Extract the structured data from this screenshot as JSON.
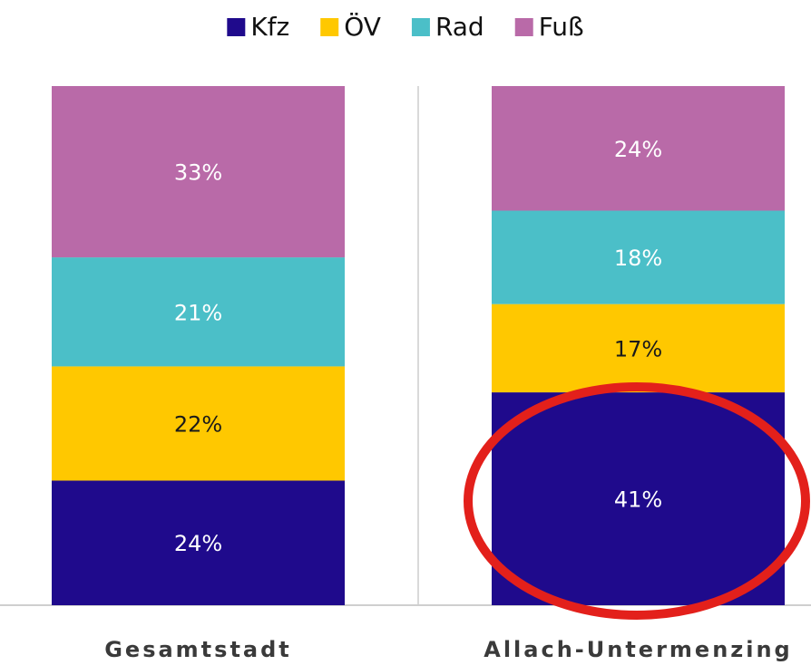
{
  "chart_data": {
    "type": "stacked_bar",
    "categories": [
      "Gesamtstadt",
      "Allach-Untermenzing"
    ],
    "series": [
      {
        "name": "Kfz",
        "color": "#1f0a8c",
        "values": [
          24,
          41
        ],
        "value_labels": [
          "24%",
          "41%"
        ]
      },
      {
        "name": "ÖV",
        "color": "#ffc800",
        "values": [
          22,
          17
        ],
        "value_labels": [
          "22%",
          "17%"
        ]
      },
      {
        "name": "Rad",
        "color": "#4bbfc8",
        "values": [
          21,
          18
        ],
        "value_labels": [
          "21%",
          "18%"
        ]
      },
      {
        "name": "Fuß",
        "color": "#b96aa8",
        "values": [
          33,
          24
        ],
        "value_labels": [
          "33%",
          "24%"
        ]
      }
    ],
    "ylim": [
      0,
      100
    ],
    "legend": "top"
  }
}
